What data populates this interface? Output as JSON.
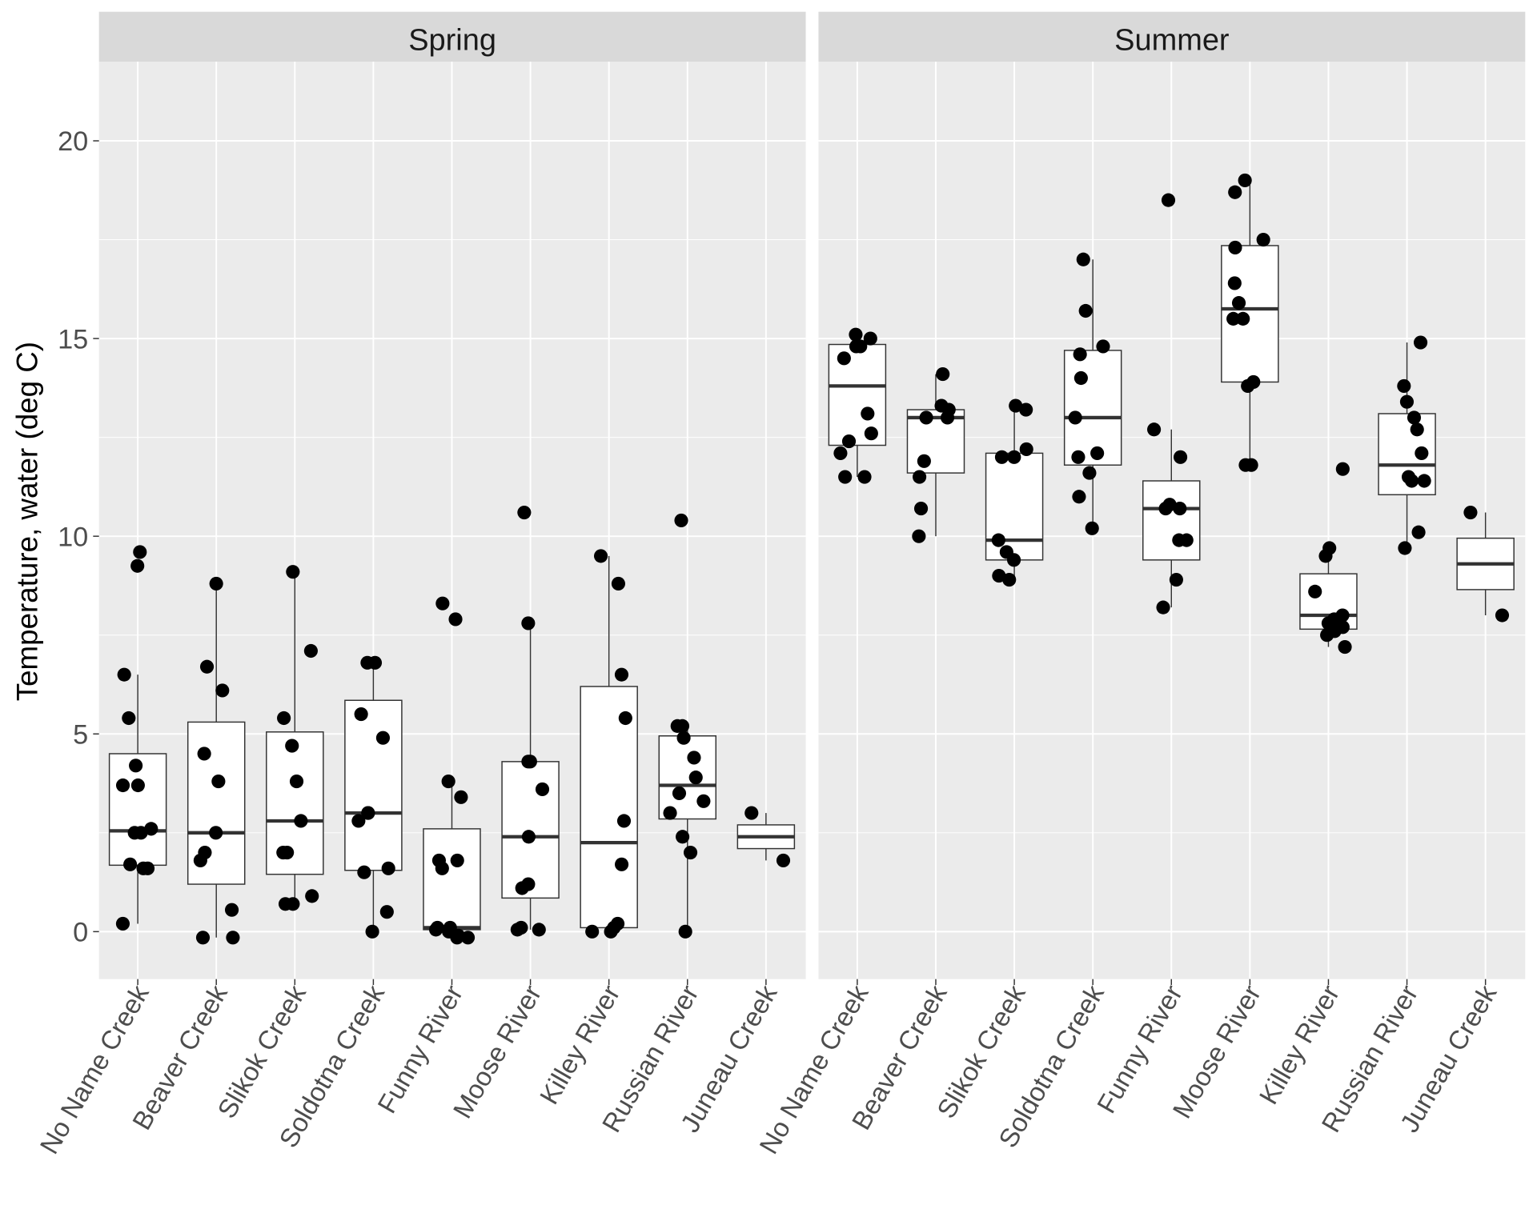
{
  "chart_data": {
    "type": "boxplot",
    "ylabel": "Temperature, water (deg C)",
    "xlabel": "",
    "ylim": [
      -1.2,
      22
    ],
    "yticks": [
      0,
      5,
      10,
      15,
      20
    ],
    "grid": true,
    "categories": [
      "No Name Creek",
      "Beaver Creek",
      "Slikok Creek",
      "Soldotna Creek",
      "Funny River",
      "Moose River",
      "Killey River",
      "Russian River",
      "Juneau Creek"
    ],
    "panels": [
      {
        "title": "Spring",
        "groups": [
          {
            "q1": 1.68,
            "median": 2.55,
            "q3": 4.5,
            "whisk_lo": 0.2,
            "whisk_hi": 6.5,
            "points": [
              9.25,
              9.6,
              6.5,
              5.4,
              4.2,
              3.7,
              3.7,
              2.6,
              2.5,
              2.5,
              1.7,
              1.6,
              1.6,
              0.2
            ]
          },
          {
            "q1": 1.2,
            "median": 2.5,
            "q3": 5.3,
            "whisk_lo": -0.15,
            "whisk_hi": 8.8,
            "points": [
              8.8,
              6.7,
              6.1,
              4.5,
              3.8,
              2.5,
              2.0,
              1.8,
              0.55,
              -0.15,
              -0.15
            ]
          },
          {
            "q1": 1.45,
            "median": 2.8,
            "q3": 5.05,
            "whisk_lo": 0.7,
            "whisk_hi": 9.1,
            "points": [
              9.1,
              7.1,
              5.4,
              4.7,
              3.8,
              2.8,
              2.0,
              2.0,
              0.9,
              0.7,
              0.7
            ]
          },
          {
            "q1": 1.55,
            "median": 3.0,
            "q3": 5.85,
            "whisk_lo": 0,
            "whisk_hi": 6.8,
            "points": [
              6.8,
              6.8,
              5.5,
              4.9,
              3.0,
              3.0,
              2.8,
              1.6,
              1.5,
              0.5,
              0
            ]
          },
          {
            "q1": 0.05,
            "median": 0.1,
            "q3": 2.6,
            "whisk_lo": -0.15,
            "whisk_hi": 3.8,
            "points": [
              8.3,
              7.9,
              3.8,
              3.4,
              1.8,
              1.8,
              1.6,
              0.1,
              0.1,
              0.05,
              0,
              -0.1,
              -0.15,
              -0.15
            ]
          },
          {
            "q1": 0.85,
            "median": 2.4,
            "q3": 4.3,
            "whisk_lo": 0.05,
            "whisk_hi": 7.8,
            "points": [
              10.6,
              7.8,
              4.3,
              4.3,
              3.6,
              2.4,
              1.2,
              1.1,
              0.1,
              0.05,
              0.05
            ]
          },
          {
            "q1": 0.1,
            "median": 2.25,
            "q3": 6.2,
            "whisk_lo": 0,
            "whisk_hi": 9.5,
            "points": [
              9.5,
              8.8,
              6.5,
              5.4,
              2.8,
              1.7,
              0.2,
              0.1,
              0,
              0
            ]
          },
          {
            "q1": 2.85,
            "median": 3.7,
            "q3": 4.95,
            "whisk_lo": 0,
            "whisk_hi": 5.2,
            "points": [
              10.4,
              5.2,
              5.2,
              4.9,
              4.4,
              3.9,
              3.5,
              3.3,
              3.0,
              2.4,
              2.0,
              0
            ]
          },
          {
            "q1": 2.1,
            "median": 2.4,
            "q3": 2.7,
            "whisk_lo": 1.8,
            "whisk_hi": 3.0,
            "points": [
              3.0,
              1.8
            ]
          }
        ]
      },
      {
        "title": "Summer",
        "groups": [
          {
            "q1": 12.3,
            "median": 13.8,
            "q3": 14.85,
            "whisk_lo": 11.5,
            "whisk_hi": 15.1,
            "points": [
              15.1,
              15.0,
              14.8,
              14.8,
              14.5,
              13.1,
              12.6,
              12.4,
              12.1,
              11.5,
              11.5
            ]
          },
          {
            "q1": 11.6,
            "median": 13.0,
            "q3": 13.2,
            "whisk_lo": 10.0,
            "whisk_hi": 14.1,
            "points": [
              14.1,
              13.3,
              13.2,
              13.0,
              13.0,
              11.9,
              11.5,
              10.7,
              10.0
            ]
          },
          {
            "q1": 9.4,
            "median": 9.9,
            "q3": 12.1,
            "whisk_lo": 8.9,
            "whisk_hi": 13.3,
            "points": [
              13.3,
              13.2,
              12.2,
              12.0,
              12.0,
              9.9,
              9.6,
              9.4,
              9.0,
              8.9
            ]
          },
          {
            "q1": 11.8,
            "median": 13.0,
            "q3": 14.7,
            "whisk_lo": 10.2,
            "whisk_hi": 17.0,
            "points": [
              17.0,
              15.7,
              14.8,
              14.6,
              14.0,
              13.0,
              12.1,
              12.0,
              11.6,
              11.0,
              10.2
            ]
          },
          {
            "q1": 9.4,
            "median": 10.7,
            "q3": 11.4,
            "whisk_lo": 8.2,
            "whisk_hi": 12.7,
            "points": [
              18.5,
              12.7,
              12.0,
              10.8,
              10.7,
              10.7,
              9.9,
              9.9,
              8.9,
              8.2
            ]
          },
          {
            "q1": 13.9,
            "median": 15.75,
            "q3": 17.35,
            "whisk_lo": 11.8,
            "whisk_hi": 19.0,
            "points": [
              19.0,
              18.7,
              17.5,
              17.3,
              16.4,
              15.9,
              15.5,
              15.5,
              13.9,
              13.8,
              11.8,
              11.8
            ]
          },
          {
            "q1": 7.65,
            "median": 8.0,
            "q3": 9.05,
            "whisk_lo": 7.2,
            "whisk_hi": 9.7,
            "points": [
              11.7,
              9.7,
              9.5,
              8.6,
              8.0,
              7.9,
              7.8,
              7.7,
              7.6,
              7.5,
              7.2
            ]
          },
          {
            "q1": 11.05,
            "median": 11.8,
            "q3": 13.1,
            "whisk_lo": 9.7,
            "whisk_hi": 14.9,
            "points": [
              14.9,
              13.8,
              13.4,
              13.0,
              12.7,
              12.1,
              11.5,
              11.4,
              11.4,
              10.1,
              9.7
            ]
          },
          {
            "q1": 8.65,
            "median": 9.3,
            "q3": 9.95,
            "whisk_lo": 8.0,
            "whisk_hi": 10.6,
            "points": [
              10.6,
              8.0
            ]
          }
        ]
      }
    ]
  }
}
